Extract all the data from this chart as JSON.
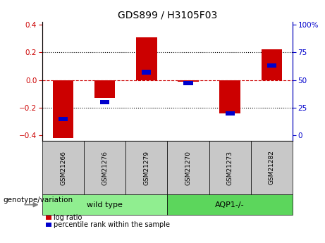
{
  "title": "GDS899 / H3105F03",
  "samples": [
    "GSM21266",
    "GSM21276",
    "GSM21279",
    "GSM21270",
    "GSM21273",
    "GSM21282"
  ],
  "log_ratios": [
    -0.42,
    -0.13,
    0.31,
    -0.01,
    -0.24,
    0.22
  ],
  "percentile_ranks": [
    15,
    30,
    57,
    47,
    20,
    63
  ],
  "groups": [
    "wild type",
    "wild type",
    "wild type",
    "AQP1-/-",
    "AQP1-/-",
    "AQP1-/-"
  ],
  "bar_color_red": "#CC0000",
  "bar_color_blue": "#0000CC",
  "ylim": [
    -0.44,
    0.42
  ],
  "yticks_left": [
    -0.4,
    -0.2,
    0.0,
    0.2,
    0.4
  ],
  "yticks_right": [
    0,
    25,
    50,
    75,
    100
  ],
  "hlines_dotted": [
    -0.2,
    0.2
  ],
  "hline_zero_color": "#CC0000",
  "bar_width": 0.5,
  "blue_bar_width": 0.22,
  "blue_bar_height": 0.032,
  "genotype_label": "genotype/variation",
  "legend_items": [
    "log ratio",
    "percentile rank within the sample"
  ],
  "sample_box_color": "#c8c8c8",
  "green_light": "#90EE90",
  "green_dark": "#5CD65C",
  "title_fontsize": 10,
  "tick_fontsize": 7.5,
  "sample_fontsize": 6.5,
  "group_fontsize": 8,
  "legend_fontsize": 7,
  "genotype_fontsize": 7.5
}
